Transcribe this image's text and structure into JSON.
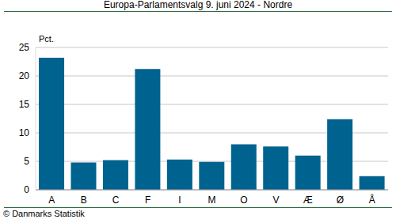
{
  "chart_data": {
    "type": "bar",
    "title": "Europa-Parlamentsvalg 9. juni 2024 - Nordre",
    "ylabel": "Pct.",
    "source": "© Danmarks Statistik",
    "categories": [
      "A",
      "B",
      "C",
      "F",
      "I",
      "M",
      "O",
      "V",
      "Æ",
      "Ø",
      "Å"
    ],
    "values": [
      23.2,
      4.8,
      5.2,
      21.2,
      5.3,
      4.9,
      8.0,
      7.6,
      6.0,
      12.4,
      2.4
    ],
    "color": "#00628f",
    "ylim": [
      0,
      25
    ],
    "yticks": [
      0,
      5,
      10,
      15,
      20,
      25
    ],
    "grid": true
  }
}
